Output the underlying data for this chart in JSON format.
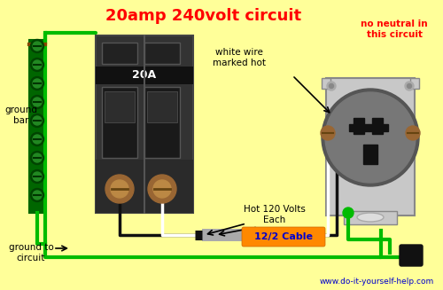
{
  "title": "20amp 240volt circuit",
  "title_color": "#ff0000",
  "title_fontsize": 13,
  "bg_color": "#ffff99",
  "subtitle": "no neutral in\nthis circuit",
  "subtitle_color": "#ff0000",
  "label_ground_bar": "ground\nbar",
  "label_ground_to_circuit": "ground to\ncircuit",
  "label_white_wire": "white wire\nmarked hot",
  "label_hot_120": "Hot 120 Volts\nEach",
  "label_cable": "12/2 Cable",
  "label_breaker": "20A",
  "website": "www.do-it-yourself-help.com",
  "green_color": "#00bb00",
  "dark_color": "#222222",
  "gray_color": "#aaaaaa",
  "light_gray": "#c8c8c8",
  "brown_color": "#996633",
  "orange_color": "#ff8800",
  "white_color": "#ffffff",
  "blue_color": "#0000cc",
  "breaker_dark": "#2a2a2a",
  "breaker_mid": "#3a3a3a",
  "breaker_switch": "#111111"
}
